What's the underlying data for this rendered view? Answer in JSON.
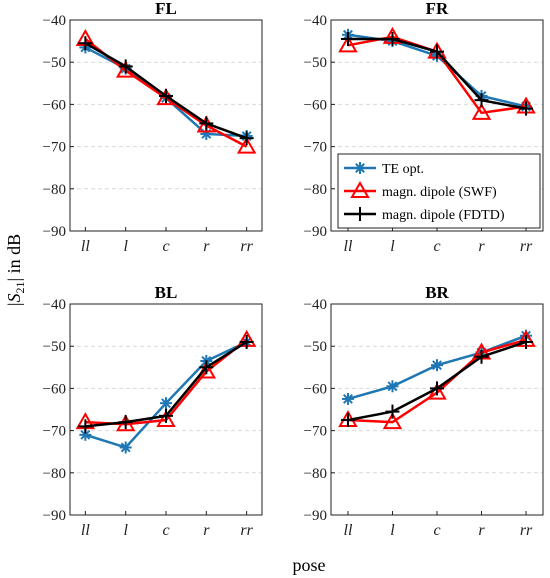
{
  "figure": {
    "ylabel": "|S21| in dB",
    "xlabel": "pose"
  },
  "chart_data": [
    {
      "type": "line",
      "title": "FL",
      "categories": [
        "ll",
        "l",
        "c",
        "r",
        "rr"
      ],
      "ylim": [
        -90,
        -40
      ],
      "yticks": [
        -40,
        -50,
        -60,
        -70,
        -80,
        -90
      ],
      "grid": "horizontal dashed",
      "series": [
        {
          "name": "TE opt.",
          "values": [
            -46.5,
            -51.5,
            -58.5,
            -67,
            -67.5
          ]
        },
        {
          "name": "magn. dipole (SWF)",
          "values": [
            -44.5,
            -52,
            -58.5,
            -65,
            -70
          ]
        },
        {
          "name": "magn. dipole (FDTD)",
          "values": [
            -45.5,
            -51,
            -58,
            -64.5,
            -68
          ]
        }
      ]
    },
    {
      "type": "line",
      "title": "FR",
      "categories": [
        "ll",
        "l",
        "c",
        "r",
        "rr"
      ],
      "ylim": [
        -90,
        -40
      ],
      "yticks": [
        -40,
        -50,
        -60,
        -70,
        -80,
        -90
      ],
      "grid": "horizontal dashed",
      "legend": "bottom-right",
      "series": [
        {
          "name": "TE opt.",
          "values": [
            -43.5,
            -45,
            -48.5,
            -58,
            -60.5
          ]
        },
        {
          "name": "magn. dipole (SWF)",
          "values": [
            -46,
            -44,
            -47.5,
            -62,
            -60.5
          ]
        },
        {
          "name": "magn. dipole (FDTD)",
          "values": [
            -44.5,
            -44.5,
            -47.5,
            -59,
            -61
          ]
        }
      ]
    },
    {
      "type": "line",
      "title": "BL",
      "categories": [
        "ll",
        "l",
        "c",
        "r",
        "rr"
      ],
      "ylim": [
        -90,
        -40
      ],
      "yticks": [
        -40,
        -50,
        -60,
        -70,
        -80,
        -90
      ],
      "grid": "horizontal dashed",
      "series": [
        {
          "name": "TE opt.",
          "values": [
            -71,
            -74,
            -63.5,
            -53.5,
            -49
          ]
        },
        {
          "name": "magn. dipole (SWF)",
          "values": [
            -68,
            -68.5,
            -67.5,
            -56,
            -48.5
          ]
        },
        {
          "name": "magn. dipole (FDTD)",
          "values": [
            -69,
            -68,
            -66.5,
            -55,
            -49
          ]
        }
      ]
    },
    {
      "type": "line",
      "title": "BR",
      "categories": [
        "ll",
        "l",
        "c",
        "r",
        "rr"
      ],
      "ylim": [
        -90,
        -40
      ],
      "yticks": [
        -40,
        -50,
        -60,
        -70,
        -80,
        -90
      ],
      "grid": "horizontal dashed",
      "series": [
        {
          "name": "TE opt.",
          "values": [
            -62.5,
            -59.5,
            -54.5,
            -51.5,
            -47.5
          ]
        },
        {
          "name": "magn. dipole (SWF)",
          "values": [
            -67.5,
            -68,
            -61,
            -51.5,
            -48.5
          ]
        },
        {
          "name": "magn. dipole (FDTD)",
          "values": [
            -67.5,
            -65.5,
            -60,
            -52.5,
            -49
          ]
        }
      ]
    }
  ],
  "styles": [
    {
      "color": "#1f77b4",
      "marker": "asterisk"
    },
    {
      "color": "#ff0000",
      "marker": "triangle"
    },
    {
      "color": "#000000",
      "marker": "plus"
    }
  ]
}
